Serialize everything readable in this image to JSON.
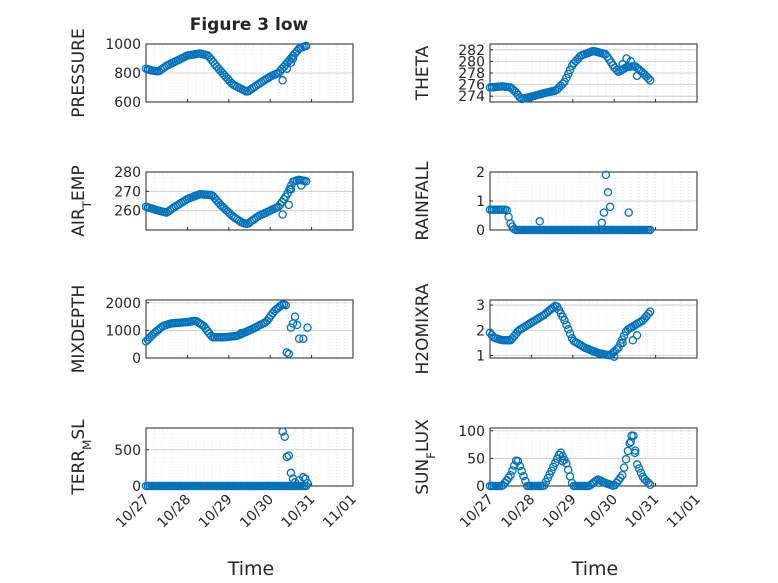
{
  "figure": {
    "title": "Figure 3 low",
    "x_label": "Time"
  },
  "colors": {
    "marker": "#0072BD",
    "axis": "#262626",
    "grid": "#d0d0d0",
    "background": "#ffffff"
  },
  "chart_data": [
    {
      "type": "scatter",
      "title": "Figure 3 low",
      "ylabel": "PRESSURE",
      "ylim": [
        600,
        1000
      ],
      "yticks": [
        600,
        800,
        1000
      ],
      "x_ticks": [
        "10/27",
        "10/28",
        "10/29",
        "10/30",
        "10/31",
        "11/01"
      ],
      "grid": true,
      "marker": "open-circle",
      "knots": [
        [
          0,
          830
        ],
        [
          0.1,
          820
        ],
        [
          0.3,
          810
        ],
        [
          0.5,
          850
        ],
        [
          1.0,
          920
        ],
        [
          1.3,
          935
        ],
        [
          1.5,
          920
        ],
        [
          1.75,
          830
        ],
        [
          2.1,
          720
        ],
        [
          2.3,
          690
        ],
        [
          2.45,
          670
        ],
        [
          2.7,
          720
        ],
        [
          3.0,
          775
        ],
        [
          3.2,
          800
        ],
        [
          3.5,
          900
        ],
        [
          3.7,
          970
        ],
        [
          3.9,
          990
        ]
      ],
      "extra_points": [
        [
          3.3,
          750
        ],
        [
          3.4,
          830
        ],
        [
          3.5,
          870
        ],
        [
          3.55,
          900
        ]
      ]
    },
    {
      "type": "scatter",
      "ylabel": "THETA",
      "ylim": [
        273,
        283
      ],
      "yticks": [
        274,
        276,
        278,
        280,
        282
      ],
      "x_ticks": [
        "10/27",
        "10/28",
        "10/29",
        "10/30",
        "10/31",
        "11/01"
      ],
      "grid": true,
      "marker": "open-circle",
      "knots": [
        [
          0,
          275.5
        ],
        [
          0.3,
          275.7
        ],
        [
          0.5,
          275.5
        ],
        [
          0.65,
          274.5
        ],
        [
          0.75,
          273.5
        ],
        [
          1.0,
          273.9
        ],
        [
          1.3,
          274.5
        ],
        [
          1.6,
          275.0
        ],
        [
          1.8,
          276.5
        ],
        [
          2.0,
          279.5
        ],
        [
          2.2,
          281.0
        ],
        [
          2.5,
          281.8
        ],
        [
          2.8,
          281.2
        ],
        [
          3.0,
          279.0
        ],
        [
          3.1,
          278.2
        ],
        [
          3.3,
          279.0
        ],
        [
          3.5,
          279.2
        ],
        [
          3.7,
          278.0
        ],
        [
          3.9,
          276.5
        ]
      ],
      "extra_points": [
        [
          3.2,
          279.5
        ],
        [
          3.3,
          280.5
        ],
        [
          3.4,
          280.0
        ],
        [
          3.55,
          277.5
        ]
      ]
    },
    {
      "type": "scatter",
      "ylabel": "AIR_TEMP",
      "ylim": [
        250,
        280
      ],
      "yticks": [
        260,
        270,
        280
      ],
      "x_ticks": [
        "10/27",
        "10/28",
        "10/29",
        "10/30",
        "10/31",
        "11/01"
      ],
      "grid": true,
      "marker": "open-circle",
      "knots": [
        [
          0,
          262
        ],
        [
          0.3,
          260
        ],
        [
          0.5,
          259
        ],
        [
          0.7,
          262
        ],
        [
          1.0,
          266
        ],
        [
          1.3,
          268.5
        ],
        [
          1.6,
          268
        ],
        [
          1.8,
          263
        ],
        [
          2.1,
          257
        ],
        [
          2.3,
          254
        ],
        [
          2.45,
          253
        ],
        [
          2.7,
          257
        ],
        [
          3.0,
          260
        ],
        [
          3.2,
          262
        ],
        [
          3.4,
          268
        ],
        [
          3.55,
          275
        ],
        [
          3.7,
          276
        ],
        [
          3.9,
          275
        ]
      ],
      "extra_points": [
        [
          3.3,
          258
        ],
        [
          3.45,
          263
        ],
        [
          3.5,
          271
        ],
        [
          3.75,
          273
        ]
      ]
    },
    {
      "type": "scatter",
      "ylabel": "RAINFALL",
      "ylim": [
        0,
        2
      ],
      "yticks": [
        0,
        1,
        2
      ],
      "x_ticks": [
        "10/27",
        "10/28",
        "10/29",
        "10/30",
        "10/31",
        "11/01"
      ],
      "grid": true,
      "marker": "open-circle",
      "knots": [
        [
          0,
          0.7
        ],
        [
          0.4,
          0.7
        ],
        [
          0.5,
          0.2
        ],
        [
          0.6,
          0
        ],
        [
          3.9,
          0
        ]
      ],
      "extra_points": [
        [
          1.2,
          0.3
        ],
        [
          2.7,
          0.25
        ],
        [
          2.75,
          0.6
        ],
        [
          2.8,
          1.9
        ],
        [
          2.85,
          1.3
        ],
        [
          2.9,
          0.8
        ],
        [
          3.35,
          0.6
        ]
      ]
    },
    {
      "type": "scatter",
      "ylabel": "MIXDEPTH",
      "ylim": [
        0,
        2100
      ],
      "yticks": [
        0,
        1000,
        2000
      ],
      "x_ticks": [
        "10/27",
        "10/28",
        "10/29",
        "10/30",
        "10/31",
        "11/01"
      ],
      "grid": true,
      "marker": "open-circle",
      "knots": [
        [
          0,
          600
        ],
        [
          0.2,
          900
        ],
        [
          0.4,
          1150
        ],
        [
          0.6,
          1250
        ],
        [
          1.0,
          1300
        ],
        [
          1.2,
          1350
        ],
        [
          1.4,
          1150
        ],
        [
          1.6,
          750
        ],
        [
          1.9,
          750
        ],
        [
          2.2,
          800
        ],
        [
          2.5,
          1000
        ],
        [
          2.9,
          1300
        ],
        [
          3.1,
          1700
        ],
        [
          3.3,
          1950
        ],
        [
          3.4,
          1900
        ]
      ],
      "extra_points": [
        [
          3.4,
          200
        ],
        [
          3.45,
          150
        ],
        [
          3.5,
          1100
        ],
        [
          3.55,
          1250
        ],
        [
          3.6,
          1500
        ],
        [
          3.65,
          1200
        ],
        [
          3.7,
          700
        ],
        [
          3.8,
          700
        ],
        [
          3.9,
          1100
        ],
        [
          2.3,
          900
        ]
      ]
    },
    {
      "type": "scatter",
      "ylabel": "H2OMIXRA",
      "ylim": [
        0.9,
        3.2
      ],
      "yticks": [
        1,
        2,
        3
      ],
      "x_ticks": [
        "10/27",
        "10/28",
        "10/29",
        "10/30",
        "10/31",
        "11/01"
      ],
      "grid": true,
      "marker": "open-circle",
      "knots": [
        [
          0,
          1.9
        ],
        [
          0.1,
          1.7
        ],
        [
          0.3,
          1.6
        ],
        [
          0.5,
          1.6
        ],
        [
          0.7,
          2.0
        ],
        [
          1.0,
          2.3
        ],
        [
          1.3,
          2.6
        ],
        [
          1.6,
          3.0
        ],
        [
          1.8,
          2.4
        ],
        [
          2.0,
          1.6
        ],
        [
          2.3,
          1.3
        ],
        [
          2.6,
          1.1
        ],
        [
          2.9,
          1.0
        ],
        [
          3.1,
          1.3
        ],
        [
          3.3,
          2.0
        ],
        [
          3.5,
          2.2
        ],
        [
          3.7,
          2.4
        ],
        [
          3.9,
          2.8
        ]
      ],
      "extra_points": [
        [
          3.0,
          0.95
        ],
        [
          3.2,
          1.5
        ],
        [
          3.4,
          2.1
        ],
        [
          3.45,
          1.6
        ],
        [
          3.55,
          1.8
        ]
      ]
    },
    {
      "type": "scatter",
      "ylabel": "TERR_MSL",
      "ylim": [
        0,
        800
      ],
      "yticks": [
        0,
        500
      ],
      "x_ticks": [
        "10/27",
        "10/28",
        "10/29",
        "10/30",
        "10/31",
        "11/01"
      ],
      "grid": true,
      "marker": "open-circle",
      "knots": [
        [
          0,
          0
        ],
        [
          3.2,
          0
        ],
        [
          3.9,
          0
        ]
      ],
      "extra_points": [
        [
          3.3,
          750
        ],
        [
          3.35,
          680
        ],
        [
          3.4,
          400
        ],
        [
          3.45,
          420
        ],
        [
          3.5,
          180
        ],
        [
          3.55,
          100
        ],
        [
          3.6,
          50
        ],
        [
          3.7,
          80
        ],
        [
          3.8,
          120
        ],
        [
          3.85,
          100
        ],
        [
          3.9,
          40
        ]
      ]
    },
    {
      "type": "scatter",
      "ylabel": "SUN_FLUX",
      "ylim": [
        0,
        105
      ],
      "yticks": [
        0,
        50,
        100
      ],
      "x_ticks": [
        "10/27",
        "10/28",
        "10/29",
        "10/30",
        "10/31",
        "11/01"
      ],
      "grid": true,
      "marker": "open-circle",
      "knots": [
        [
          0,
          0
        ],
        [
          0.3,
          0
        ],
        [
          0.5,
          20
        ],
        [
          0.65,
          50
        ],
        [
          0.75,
          30
        ],
        [
          0.9,
          0
        ],
        [
          1.3,
          0
        ],
        [
          1.5,
          30
        ],
        [
          1.7,
          62
        ],
        [
          1.85,
          40
        ],
        [
          2.0,
          0
        ],
        [
          2.4,
          0
        ],
        [
          2.6,
          12
        ],
        [
          2.8,
          5
        ],
        [
          3.0,
          0
        ],
        [
          3.2,
          20
        ],
        [
          3.35,
          70
        ],
        [
          3.45,
          100
        ],
        [
          3.55,
          40
        ],
        [
          3.7,
          15
        ],
        [
          3.9,
          0
        ]
      ],
      "extra_points": [
        [
          3.4,
          80
        ],
        [
          3.5,
          60
        ],
        [
          1.75,
          45
        ]
      ]
    }
  ]
}
